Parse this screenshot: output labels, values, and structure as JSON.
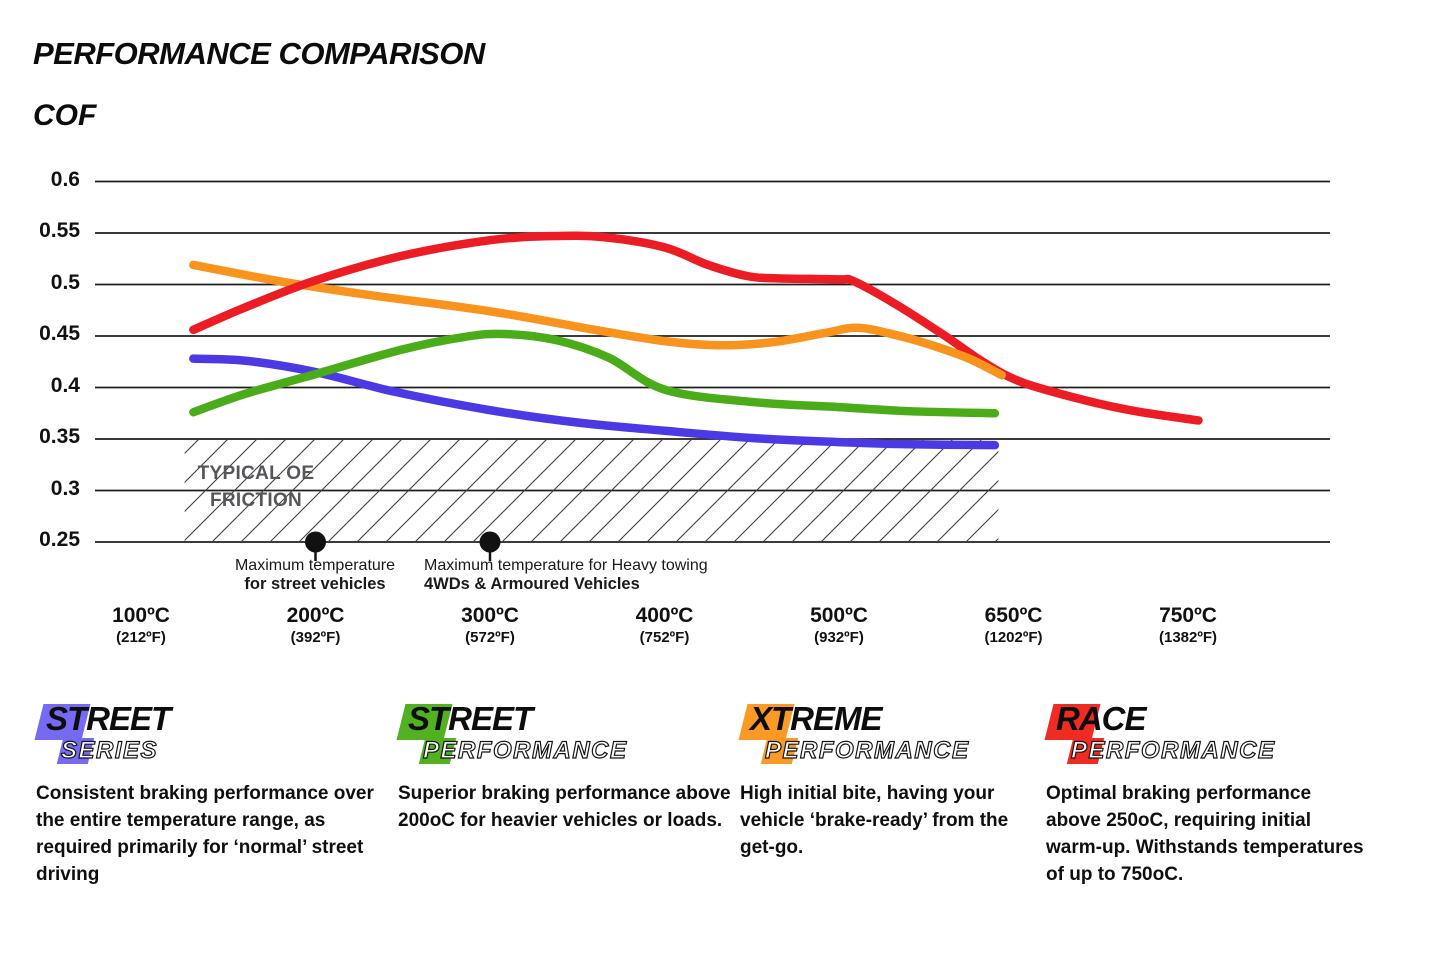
{
  "header": {
    "title": "PERFORMANCE COMPARISON",
    "ylabel": "COF"
  },
  "chart_data": {
    "type": "line",
    "title": "PERFORMANCE COMPARISON",
    "ylabel": "COF",
    "xlabel": "",
    "grid": "horizontal",
    "legend_position": "bottom",
    "ylim": [
      0.25,
      0.6
    ],
    "y_ticks": [
      {
        "label": "0.6",
        "value": 0.6
      },
      {
        "label": "0.55",
        "value": 0.55
      },
      {
        "label": "0.5",
        "value": 0.5
      },
      {
        "label": "0.45",
        "value": 0.45
      },
      {
        "label": "0.4",
        "value": 0.4
      },
      {
        "label": "0.35",
        "value": 0.35
      },
      {
        "label": "0.3",
        "value": 0.3
      },
      {
        "label": "0.25",
        "value": 0.25
      }
    ],
    "x_ticks": [
      {
        "value": 100,
        "label": "100ºC",
        "sub": "(212ºF)"
      },
      {
        "value": 200,
        "label": "200ºC",
        "sub": "(392ºF)"
      },
      {
        "value": 300,
        "label": "300ºC",
        "sub": "(572ºF)"
      },
      {
        "value": 400,
        "label": "400ºC",
        "sub": "(752ºF)"
      },
      {
        "value": 500,
        "label": "500ºC",
        "sub": "(932ºF)"
      },
      {
        "value": 650,
        "label": "650ºC",
        "sub": "(1202ºF)"
      },
      {
        "value": 750,
        "label": "750ºC",
        "sub": "(1382ºF)"
      }
    ],
    "series": [
      {
        "name": "Street Series",
        "color": "#4B39E3",
        "points": [
          [
            130,
            0.428
          ],
          [
            160,
            0.426
          ],
          [
            200,
            0.415
          ],
          [
            245,
            0.396
          ],
          [
            300,
            0.378
          ],
          [
            350,
            0.366
          ],
          [
            400,
            0.358
          ],
          [
            450,
            0.351
          ],
          [
            500,
            0.347
          ],
          [
            555,
            0.345
          ],
          [
            634,
            0.344
          ]
        ]
      },
      {
        "name": "Street Performance",
        "color": "#49AC18",
        "points": [
          [
            130,
            0.376
          ],
          [
            160,
            0.394
          ],
          [
            200,
            0.413
          ],
          [
            250,
            0.437
          ],
          [
            285,
            0.449
          ],
          [
            308,
            0.452
          ],
          [
            338,
            0.446
          ],
          [
            368,
            0.429
          ],
          [
            400,
            0.398
          ],
          [
            450,
            0.386
          ],
          [
            500,
            0.381
          ],
          [
            560,
            0.377
          ],
          [
            634,
            0.375
          ]
        ]
      },
      {
        "name": "Xtreme Performance",
        "color": "#F8941D",
        "overlay_tail": true,
        "points": [
          [
            130,
            0.519
          ],
          [
            180,
            0.503
          ],
          [
            230,
            0.49
          ],
          [
            300,
            0.474
          ],
          [
            360,
            0.456
          ],
          [
            400,
            0.445
          ],
          [
            432,
            0.441
          ],
          [
            462,
            0.444
          ],
          [
            492,
            0.453
          ],
          [
            515,
            0.458
          ],
          [
            545,
            0.452
          ],
          [
            580,
            0.441
          ],
          [
            612,
            0.428
          ],
          [
            640,
            0.412
          ]
        ]
      },
      {
        "name": "Race Performance",
        "color": "#EC1C24",
        "points": [
          [
            130,
            0.456
          ],
          [
            160,
            0.478
          ],
          [
            200,
            0.504
          ],
          [
            250,
            0.528
          ],
          [
            300,
            0.543
          ],
          [
            335,
            0.547
          ],
          [
            365,
            0.546
          ],
          [
            400,
            0.536
          ],
          [
            425,
            0.519
          ],
          [
            448,
            0.508
          ],
          [
            465,
            0.506
          ],
          [
            500,
            0.505
          ],
          [
            513,
            0.503
          ],
          [
            550,
            0.48
          ],
          [
            590,
            0.451
          ],
          [
            625,
            0.424
          ],
          [
            655,
            0.405
          ],
          [
            690,
            0.388
          ],
          [
            720,
            0.377
          ],
          [
            756,
            0.368
          ]
        ]
      }
    ],
    "annotations": {
      "oe_friction": {
        "line1": "TYPICAL OE",
        "line2": "FRICTION",
        "cof_top": 0.35,
        "cof_bottom": 0.25,
        "temp_start": 125,
        "temp_end": 637
      },
      "markers": [
        {
          "temp": 200,
          "cof": 0.25,
          "line1": "Maximum temperature",
          "line2": "for street vehicles"
        },
        {
          "temp": 300,
          "cof": 0.25,
          "line1": "Maximum temperature for Heavy towing",
          "line2": "4WDs & Armoured Vehicles"
        }
      ]
    }
  },
  "legend": {
    "products": [
      {
        "word1": "STREET",
        "word2": "SERIES",
        "color": "#766AF2",
        "description": "Consistent braking performance over the entire temperature range, as required primarily for ‘normal’ street driving"
      },
      {
        "word1": "STREET",
        "word2": "PERFORMANCE",
        "color": "#52B120",
        "description": "Superior braking performance above 200oC for heavier vehicles or loads."
      },
      {
        "word1": "XTREME",
        "word2": "PERFORMANCE",
        "color": "#F89A25",
        "description": "High initial bite, having your vehicle ‘brake-ready’ from the get-go."
      },
      {
        "word1": "RACE",
        "word2": "PERFORMANCE",
        "color": "#EE2C24",
        "description": "Optimal braking performance above 250oC, requiring initial warm-up. Withstands temperatures of up to 750oC."
      }
    ]
  }
}
